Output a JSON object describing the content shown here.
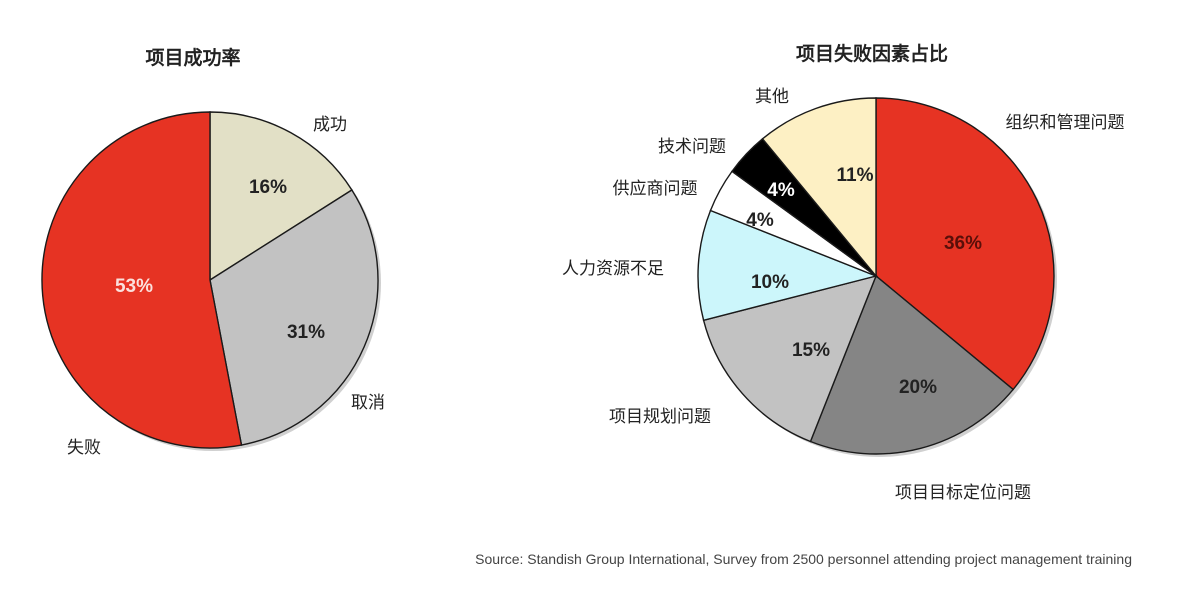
{
  "chart_data": [
    {
      "type": "pie",
      "title": "项目成功率",
      "slices": [
        {
          "label": "成功",
          "value": 16,
          "value_label": "16%",
          "color": "#e2e0c6",
          "label_color": "#222222"
        },
        {
          "label": "取消",
          "value": 31,
          "value_label": "31%",
          "color": "#c2c2c2",
          "label_color": "#222222"
        },
        {
          "label": "失败",
          "value": 53,
          "value_label": "53%",
          "color": "#e63323",
          "label_color": "#fbe0dc"
        }
      ]
    },
    {
      "type": "pie",
      "title": "项目失败因素占比",
      "slices": [
        {
          "label": "组织和管理问题",
          "value": 36,
          "value_label": "36%",
          "color": "#e63323",
          "label_color": "#5a0f09"
        },
        {
          "label": "项目目标定位问题",
          "value": 20,
          "value_label": "20%",
          "color": "#858585",
          "label_color": "#222222"
        },
        {
          "label": "项目规划问题",
          "value": 15,
          "value_label": "15%",
          "color": "#c2c2c2",
          "label_color": "#222222"
        },
        {
          "label": "人力资源不足",
          "value": 10,
          "value_label": "10%",
          "color": "#ccf6fb",
          "label_color": "#222222"
        },
        {
          "label": "供应商问题",
          "value": 4,
          "value_label": "4%",
          "color": "#ffffff",
          "label_color": "#222222"
        },
        {
          "label": "技术问题",
          "value": 4,
          "value_label": "4%",
          "color": "#000000",
          "label_color": "#ffffff"
        },
        {
          "label": "其他",
          "value": 11,
          "value_label": "11%",
          "color": "#fdf0c4",
          "label_color": "#222222"
        }
      ]
    }
  ],
  "source": "Source: Standish Group International, Survey from 2500 personnel attending project management training"
}
